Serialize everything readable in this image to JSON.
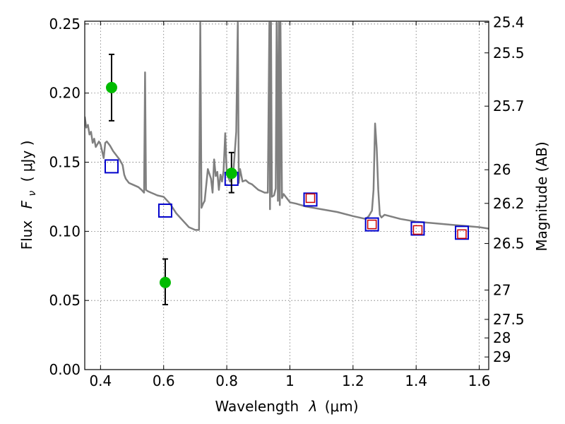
{
  "chart_data": {
    "type": "scatter",
    "xlabel_prefix": "Wavelength",
    "xlabel_symbol": "λ",
    "xlabel_unit": "(μm)",
    "ylabel_prefix": "Flux",
    "ylabel_symbol": "F",
    "ylabel_subscript": "ν",
    "ylabel_unit": "( μJy )",
    "y2label": "Magnitude (AB)",
    "xlim": [
      0.35,
      1.63
    ],
    "ylim": [
      0.0,
      0.252
    ],
    "xticks": [
      0.4,
      0.6,
      0.8,
      1.0,
      1.2,
      1.4,
      1.6
    ],
    "xtick_labels": [
      "0.4",
      "0.6",
      "0.8",
      "1",
      "1.2",
      "1.4",
      "1.6"
    ],
    "yticks": [
      0.0,
      0.05,
      0.1,
      0.15,
      0.2,
      0.25
    ],
    "ytick_labels": [
      "0.00",
      "0.05",
      "0.10",
      "0.15",
      "0.20",
      "0.25"
    ],
    "mag_ticks": [
      25.4,
      25.5,
      25.7,
      26,
      26.2,
      26.5,
      27,
      27.5,
      28,
      29
    ],
    "mag_tick_labels": [
      "25.4",
      "25.5",
      "25.7",
      "26",
      "26.2",
      "26.5",
      "27",
      "27.5",
      "28",
      "29"
    ],
    "grid": true,
    "series": [
      {
        "name": "model-spectrum",
        "kind": "line",
        "color": "#808080",
        "x": [
          0.35,
          0.355,
          0.36,
          0.365,
          0.37,
          0.375,
          0.38,
          0.385,
          0.39,
          0.395,
          0.4,
          0.405,
          0.41,
          0.415,
          0.42,
          0.43,
          0.44,
          0.45,
          0.46,
          0.47,
          0.475,
          0.48,
          0.49,
          0.5,
          0.51,
          0.52,
          0.53,
          0.538,
          0.541,
          0.544,
          0.55,
          0.56,
          0.57,
          0.58,
          0.6,
          0.62,
          0.64,
          0.66,
          0.68,
          0.7,
          0.712,
          0.716,
          0.72,
          0.725,
          0.73,
          0.74,
          0.75,
          0.755,
          0.76,
          0.765,
          0.77,
          0.775,
          0.78,
          0.785,
          0.79,
          0.795,
          0.8,
          0.81,
          0.82,
          0.83,
          0.835,
          0.838,
          0.842,
          0.85,
          0.86,
          0.87,
          0.88,
          0.89,
          0.9,
          0.91,
          0.92,
          0.93,
          0.935,
          0.937,
          0.94,
          0.943,
          0.95,
          0.955,
          0.958,
          0.962,
          0.965,
          0.968,
          0.97,
          0.975,
          0.98,
          1.0,
          1.02,
          1.05,
          1.1,
          1.15,
          1.2,
          1.22,
          1.24,
          1.25,
          1.26,
          1.265,
          1.27,
          1.275,
          1.28,
          1.285,
          1.29,
          1.3,
          1.35,
          1.4,
          1.45,
          1.5,
          1.55,
          1.6,
          1.63
        ],
        "y": [
          0.183,
          0.175,
          0.177,
          0.17,
          0.172,
          0.164,
          0.167,
          0.161,
          0.163,
          0.165,
          0.163,
          0.158,
          0.153,
          0.164,
          0.165,
          0.162,
          0.158,
          0.155,
          0.152,
          0.148,
          0.141,
          0.138,
          0.135,
          0.134,
          0.133,
          0.132,
          0.13,
          0.128,
          0.215,
          0.13,
          0.129,
          0.128,
          0.127,
          0.126,
          0.125,
          0.12,
          0.113,
          0.108,
          0.103,
          0.101,
          0.101,
          0.251,
          0.117,
          0.12,
          0.122,
          0.145,
          0.138,
          0.128,
          0.152,
          0.14,
          0.143,
          0.13,
          0.141,
          0.136,
          0.144,
          0.171,
          0.142,
          0.136,
          0.14,
          0.172,
          0.251,
          0.135,
          0.145,
          0.136,
          0.137,
          0.135,
          0.134,
          0.132,
          0.13,
          0.129,
          0.128,
          0.128,
          0.251,
          0.116,
          0.251,
          0.125,
          0.126,
          0.131,
          0.251,
          0.122,
          0.251,
          0.119,
          0.251,
          0.124,
          0.127,
          0.121,
          0.12,
          0.118,
          0.116,
          0.114,
          0.111,
          0.11,
          0.109,
          0.111,
          0.115,
          0.13,
          0.178,
          0.16,
          0.13,
          0.112,
          0.11,
          0.112,
          0.109,
          0.107,
          0.106,
          0.105,
          0.104,
          0.103,
          0.102
        ]
      },
      {
        "name": "model-photometry",
        "kind": "square-outline",
        "color": "#0000cc",
        "x": [
          0.435,
          0.605,
          0.815,
          1.065,
          1.26,
          1.405,
          1.545
        ],
        "y": [
          0.147,
          0.115,
          0.138,
          0.123,
          0.105,
          0.102,
          0.099
        ]
      },
      {
        "name": "model-photometry-small",
        "kind": "square-outline-small",
        "color": "#cc0000",
        "x": [
          1.065,
          1.26,
          1.405,
          1.545
        ],
        "y": [
          0.124,
          0.105,
          0.101,
          0.098
        ]
      },
      {
        "name": "observed",
        "kind": "circle-errorbar",
        "color": "#00bb00",
        "x": [
          0.435,
          0.605,
          0.815
        ],
        "y": [
          0.204,
          0.063,
          0.142
        ],
        "err_low": [
          0.024,
          0.016,
          0.014
        ],
        "err_high": [
          0.024,
          0.017,
          0.015
        ]
      }
    ]
  }
}
